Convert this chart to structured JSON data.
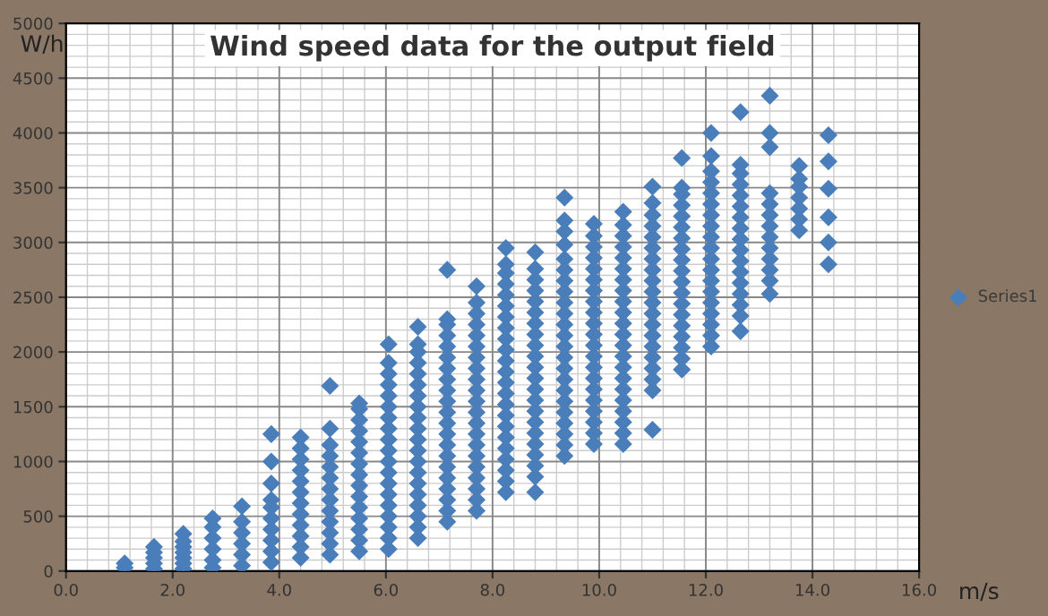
{
  "chart_data": {
    "type": "scatter",
    "title": "Wind speed data for the output field",
    "xlabel": "m/s",
    "ylabel": "W/h",
    "xlim": [
      0,
      16
    ],
    "ylim": [
      0,
      5000
    ],
    "xticks": [
      {
        "value": 0,
        "label": "0.0"
      },
      {
        "value": 2,
        "label": "2.0"
      },
      {
        "value": 4,
        "label": "4.0"
      },
      {
        "value": 6,
        "label": "6.0"
      },
      {
        "value": 8,
        "label": "8.0"
      },
      {
        "value": 10,
        "label": "10.0"
      },
      {
        "value": 12,
        "label": "12.0"
      },
      {
        "value": 14,
        "label": "14.0"
      },
      {
        "value": 16,
        "label": "16.0"
      }
    ],
    "yticks": [
      0,
      500,
      1000,
      1500,
      2000,
      2500,
      3000,
      3500,
      4000,
      4500,
      5000
    ],
    "grid": true,
    "legend": "right",
    "marker": "diamond",
    "series": [
      {
        "name": "Series1",
        "color": "#4a7ebb",
        "x": [
          1.1,
          1.1,
          1.65,
          1.65,
          1.65,
          1.65,
          1.65,
          2.2,
          2.2,
          2.2,
          2.2,
          2.2,
          2.2,
          2.2,
          2.75,
          2.75,
          2.75,
          2.75,
          2.75,
          2.75,
          3.3,
          3.3,
          3.3,
          3.3,
          3.3,
          3.3,
          3.85,
          3.85,
          3.85,
          3.85,
          3.85,
          3.85,
          3.85,
          3.85,
          3.85,
          3.85,
          4.4,
          4.4,
          4.4,
          4.4,
          4.4,
          4.4,
          4.4,
          4.4,
          4.4,
          4.4,
          4.4,
          4.4,
          4.95,
          4.95,
          4.95,
          4.95,
          4.95,
          4.95,
          4.95,
          4.95,
          4.95,
          4.95,
          4.95,
          4.95,
          4.95,
          5.5,
          5.5,
          5.5,
          5.5,
          5.5,
          5.5,
          5.5,
          5.5,
          5.5,
          5.5,
          5.5,
          5.5,
          5.5,
          5.5,
          5.5,
          6.05,
          6.05,
          6.05,
          6.05,
          6.05,
          6.05,
          6.05,
          6.05,
          6.05,
          6.05,
          6.05,
          6.05,
          6.05,
          6.05,
          6.05,
          6.05,
          6.05,
          6.05,
          6.05,
          6.6,
          6.6,
          6.6,
          6.6,
          6.6,
          6.6,
          6.6,
          6.6,
          6.6,
          6.6,
          6.6,
          6.6,
          6.6,
          6.6,
          6.6,
          6.6,
          6.6,
          6.6,
          6.6,
          6.6,
          7.15,
          7.15,
          7.15,
          7.15,
          7.15,
          7.15,
          7.15,
          7.15,
          7.15,
          7.15,
          7.15,
          7.15,
          7.15,
          7.15,
          7.15,
          7.15,
          7.15,
          7.15,
          7.15,
          7.15,
          7.15,
          7.7,
          7.7,
          7.7,
          7.7,
          7.7,
          7.7,
          7.7,
          7.7,
          7.7,
          7.7,
          7.7,
          7.7,
          7.7,
          7.7,
          7.7,
          7.7,
          7.7,
          7.7,
          7.7,
          7.7,
          7.7,
          8.25,
          8.25,
          8.25,
          8.25,
          8.25,
          8.25,
          8.25,
          8.25,
          8.25,
          8.25,
          8.25,
          8.25,
          8.25,
          8.25,
          8.25,
          8.25,
          8.25,
          8.25,
          8.25,
          8.25,
          8.25,
          8.25,
          8.25,
          8.8,
          8.8,
          8.8,
          8.8,
          8.8,
          8.8,
          8.8,
          8.8,
          8.8,
          8.8,
          8.8,
          8.8,
          8.8,
          8.8,
          8.8,
          8.8,
          8.8,
          8.8,
          8.8,
          8.8,
          8.8,
          8.8,
          9.35,
          9.35,
          9.35,
          9.35,
          9.35,
          9.35,
          9.35,
          9.35,
          9.35,
          9.35,
          9.35,
          9.35,
          9.35,
          9.35,
          9.35,
          9.35,
          9.35,
          9.35,
          9.35,
          9.35,
          9.35,
          9.35,
          9.35,
          9.9,
          9.9,
          9.9,
          9.9,
          9.9,
          9.9,
          9.9,
          9.9,
          9.9,
          9.9,
          9.9,
          9.9,
          9.9,
          9.9,
          9.9,
          9.9,
          9.9,
          9.9,
          9.9,
          9.9,
          9.9,
          10.45,
          10.45,
          10.45,
          10.45,
          10.45,
          10.45,
          10.45,
          10.45,
          10.45,
          10.45,
          10.45,
          10.45,
          10.45,
          10.45,
          10.45,
          10.45,
          10.45,
          10.45,
          10.45,
          10.45,
          10.45,
          10.45,
          11.0,
          11.0,
          11.0,
          11.0,
          11.0,
          11.0,
          11.0,
          11.0,
          11.0,
          11.0,
          11.0,
          11.0,
          11.0,
          11.0,
          11.0,
          11.0,
          11.0,
          11.0,
          11.0,
          11.0,
          11.55,
          11.55,
          11.55,
          11.55,
          11.55,
          11.55,
          11.55,
          11.55,
          11.55,
          11.55,
          11.55,
          11.55,
          11.55,
          11.55,
          11.55,
          11.55,
          11.55,
          11.55,
          11.55,
          12.1,
          12.1,
          12.1,
          12.1,
          12.1,
          12.1,
          12.1,
          12.1,
          12.1,
          12.1,
          12.1,
          12.1,
          12.1,
          12.1,
          12.1,
          12.1,
          12.1,
          12.1,
          12.1,
          12.65,
          12.65,
          12.65,
          12.65,
          12.65,
          12.65,
          12.65,
          12.65,
          12.65,
          12.65,
          12.65,
          12.65,
          12.65,
          12.65,
          12.65,
          12.65,
          12.65,
          13.2,
          13.2,
          13.2,
          13.2,
          13.2,
          13.2,
          13.2,
          13.2,
          13.2,
          13.2,
          13.2,
          13.2,
          13.2,
          13.75,
          13.75,
          13.75,
          13.75,
          13.75,
          13.75,
          13.75,
          14.3,
          14.3,
          14.3,
          14.3,
          14.3,
          14.3
        ],
        "values": [
          30,
          70,
          20,
          70,
          120,
          170,
          220,
          20,
          70,
          120,
          170,
          220,
          270,
          340,
          30,
          100,
          200,
          300,
          400,
          480,
          50,
          150,
          250,
          350,
          450,
          590,
          80,
          180,
          280,
          380,
          480,
          580,
          650,
          800,
          1000,
          1250,
          120,
          220,
          320,
          420,
          520,
          620,
          720,
          820,
          920,
          1020,
          1120,
          1220,
          150,
          250,
          350,
          450,
          550,
          650,
          750,
          850,
          950,
          1050,
          1150,
          1300,
          1690,
          180,
          280,
          380,
          480,
          580,
          680,
          780,
          880,
          980,
          1080,
          1180,
          1280,
          1380,
          1480,
          1530,
          200,
          300,
          400,
          500,
          600,
          700,
          800,
          900,
          1000,
          1100,
          1200,
          1300,
          1400,
          1500,
          1600,
          1700,
          1800,
          1900,
          2070,
          300,
          400,
          500,
          600,
          700,
          800,
          900,
          1000,
          1100,
          1200,
          1300,
          1400,
          1500,
          1600,
          1700,
          1800,
          1900,
          2000,
          2070,
          2230,
          450,
          550,
          650,
          750,
          850,
          950,
          1050,
          1150,
          1250,
          1350,
          1450,
          1550,
          1650,
          1750,
          1850,
          1950,
          2050,
          2150,
          2250,
          2300,
          2750,
          550,
          650,
          750,
          850,
          950,
          1050,
          1150,
          1250,
          1350,
          1450,
          1550,
          1650,
          1750,
          1850,
          1950,
          2050,
          2150,
          2250,
          2350,
          2450,
          2600,
          720,
          820,
          920,
          1020,
          1120,
          1220,
          1320,
          1420,
          1520,
          1620,
          1720,
          1820,
          1920,
          2020,
          2120,
          2220,
          2320,
          2420,
          2520,
          2620,
          2720,
          2800,
          2950,
          720,
          860,
          960,
          1060,
          1160,
          1260,
          1360,
          1460,
          1560,
          1660,
          1760,
          1860,
          1960,
          2060,
          2160,
          2260,
          2360,
          2460,
          2560,
          2660,
          2760,
          2910,
          1050,
          1150,
          1250,
          1350,
          1450,
          1550,
          1650,
          1750,
          1850,
          1950,
          2050,
          2150,
          2250,
          2350,
          2450,
          2550,
          2650,
          2750,
          2850,
          2980,
          3100,
          3200,
          3410,
          1160,
          1260,
          1360,
          1460,
          1560,
          1660,
          1760,
          1860,
          1960,
          2060,
          2160,
          2260,
          2360,
          2460,
          2560,
          2660,
          2760,
          2860,
          2960,
          3060,
          3170,
          1160,
          1260,
          1360,
          1460,
          1560,
          1660,
          1760,
          1860,
          1960,
          2060,
          2160,
          2260,
          2360,
          2460,
          2560,
          2660,
          2760,
          2860,
          2960,
          3060,
          3160,
          3280,
          1290,
          1650,
          1750,
          1850,
          1950,
          2050,
          2150,
          2250,
          2350,
          2450,
          2550,
          2650,
          2750,
          2850,
          2950,
          3050,
          3150,
          3250,
          3360,
          3510,
          1840,
          1940,
          2040,
          2140,
          2240,
          2340,
          2440,
          2540,
          2640,
          2740,
          2840,
          2940,
          3040,
          3140,
          3240,
          3340,
          3440,
          3500,
          3770,
          2050,
          2150,
          2250,
          2350,
          2450,
          2550,
          2650,
          2750,
          2850,
          2950,
          3050,
          3150,
          3250,
          3350,
          3450,
          3550,
          3650,
          3790,
          4000,
          2190,
          2330,
          2430,
          2530,
          2630,
          2730,
          2830,
          2930,
          3030,
          3130,
          3230,
          3330,
          3430,
          3530,
          3630,
          3710,
          4190,
          2530,
          2650,
          2750,
          2850,
          2950,
          3050,
          3150,
          3250,
          3350,
          3450,
          3870,
          4000,
          4340,
          3110,
          3210,
          3310,
          3410,
          3510,
          3580,
          3700,
          2800,
          3000,
          3230,
          3490,
          3740,
          3980
        ]
      }
    ]
  }
}
